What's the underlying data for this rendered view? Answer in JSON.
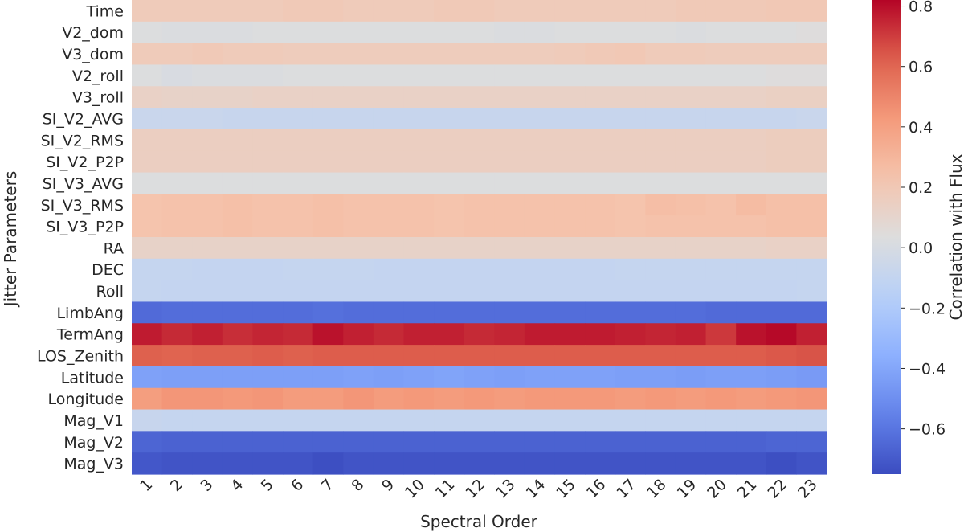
{
  "chart_data": {
    "type": "heatmap",
    "xlabel": "Spectral Order",
    "ylabel": "Jitter Parameters",
    "colorbar_label": "Correlation with Flux",
    "colormap": "coolwarm",
    "vmin": -0.75,
    "vmax": 0.82,
    "colorbar_ticks": [
      0.8,
      0.6,
      0.4,
      0.2,
      0.0,
      -0.2,
      -0.4,
      -0.6
    ],
    "colorbar_tick_labels": [
      "0.8",
      "0.6",
      "0.4",
      "0.2",
      "0.0",
      "−0.2",
      "−0.4",
      "−0.6"
    ],
    "x": [
      "1",
      "2",
      "3",
      "4",
      "5",
      "6",
      "7",
      "8",
      "9",
      "10",
      "11",
      "12",
      "13",
      "14",
      "15",
      "16",
      "17",
      "18",
      "19",
      "20",
      "21",
      "22",
      "23"
    ],
    "y": [
      "Time",
      "V2_dom",
      "V3_dom",
      "V2_roll",
      "V3_roll",
      "SI_V2_AVG",
      "SI_V2_RMS",
      "SI_V2_P2P",
      "SI_V3_AVG",
      "SI_V3_RMS",
      "SI_V3_P2P",
      "RA",
      "DEC",
      "Roll",
      "LimbAng",
      "TermAng",
      "LOS_Zenith",
      "Latitude",
      "Longitude",
      "Mag_V1",
      "Mag_V2",
      "Mag_V3"
    ],
    "values": [
      [
        0.18,
        0.18,
        0.18,
        0.18,
        0.18,
        0.19,
        0.19,
        0.18,
        0.18,
        0.18,
        0.19,
        0.19,
        0.18,
        0.18,
        0.18,
        0.18,
        0.18,
        0.18,
        0.19,
        0.19,
        0.19,
        0.2,
        0.2
      ],
      [
        0.03,
        0.02,
        0.02,
        0.02,
        0.03,
        0.03,
        0.03,
        0.03,
        0.03,
        0.03,
        0.03,
        0.03,
        0.02,
        0.02,
        0.03,
        0.03,
        0.03,
        0.03,
        0.02,
        0.03,
        0.03,
        0.03,
        0.04
      ],
      [
        0.18,
        0.18,
        0.19,
        0.18,
        0.18,
        0.17,
        0.17,
        0.17,
        0.17,
        0.17,
        0.17,
        0.17,
        0.17,
        0.17,
        0.18,
        0.19,
        0.2,
        0.18,
        0.18,
        0.17,
        0.17,
        0.17,
        0.17
      ],
      [
        0.03,
        0.01,
        0.02,
        0.02,
        0.02,
        0.03,
        0.03,
        0.03,
        0.03,
        0.03,
        0.03,
        0.03,
        0.03,
        0.03,
        0.03,
        0.03,
        0.03,
        0.03,
        0.03,
        0.03,
        0.03,
        0.04,
        0.04
      ],
      [
        0.13,
        0.12,
        0.12,
        0.12,
        0.13,
        0.13,
        0.13,
        0.13,
        0.13,
        0.13,
        0.13,
        0.13,
        0.13,
        0.13,
        0.13,
        0.13,
        0.13,
        0.13,
        0.13,
        0.13,
        0.13,
        0.14,
        0.14
      ],
      [
        -0.07,
        -0.07,
        -0.07,
        -0.08,
        -0.08,
        -0.08,
        -0.08,
        -0.08,
        -0.08,
        -0.08,
        -0.08,
        -0.08,
        -0.08,
        -0.08,
        -0.08,
        -0.08,
        -0.08,
        -0.08,
        -0.08,
        -0.08,
        -0.08,
        -0.08,
        -0.07
      ],
      [
        0.15,
        0.15,
        0.15,
        0.15,
        0.15,
        0.15,
        0.15,
        0.15,
        0.15,
        0.15,
        0.15,
        0.15,
        0.15,
        0.15,
        0.15,
        0.15,
        0.15,
        0.15,
        0.15,
        0.15,
        0.15,
        0.16,
        0.16
      ],
      [
        0.15,
        0.15,
        0.15,
        0.15,
        0.15,
        0.15,
        0.15,
        0.15,
        0.15,
        0.15,
        0.15,
        0.15,
        0.15,
        0.15,
        0.15,
        0.15,
        0.15,
        0.15,
        0.15,
        0.15,
        0.15,
        0.16,
        0.16
      ],
      [
        0.03,
        0.03,
        0.03,
        0.03,
        0.03,
        0.03,
        0.03,
        0.03,
        0.03,
        0.03,
        0.03,
        0.03,
        0.03,
        0.03,
        0.03,
        0.03,
        0.03,
        0.03,
        0.03,
        0.03,
        0.03,
        0.03,
        0.03
      ],
      [
        0.23,
        0.24,
        0.24,
        0.25,
        0.24,
        0.24,
        0.25,
        0.24,
        0.24,
        0.24,
        0.23,
        0.24,
        0.24,
        0.24,
        0.24,
        0.24,
        0.23,
        0.26,
        0.25,
        0.24,
        0.27,
        0.25,
        0.25
      ],
      [
        0.23,
        0.24,
        0.24,
        0.25,
        0.24,
        0.24,
        0.25,
        0.24,
        0.24,
        0.24,
        0.23,
        0.24,
        0.24,
        0.24,
        0.24,
        0.24,
        0.23,
        0.24,
        0.24,
        0.24,
        0.24,
        0.25,
        0.25
      ],
      [
        0.12,
        0.12,
        0.12,
        0.12,
        0.12,
        0.12,
        0.12,
        0.12,
        0.12,
        0.12,
        0.12,
        0.12,
        0.12,
        0.12,
        0.12,
        0.12,
        0.12,
        0.12,
        0.12,
        0.12,
        0.12,
        0.13,
        0.13
      ],
      [
        -0.09,
        -0.09,
        -0.1,
        -0.1,
        -0.1,
        -0.09,
        -0.09,
        -0.09,
        -0.1,
        -0.1,
        -0.1,
        -0.1,
        -0.1,
        -0.1,
        -0.1,
        -0.1,
        -0.09,
        -0.09,
        -0.09,
        -0.09,
        -0.09,
        -0.09,
        -0.09
      ],
      [
        -0.09,
        -0.1,
        -0.1,
        -0.1,
        -0.1,
        -0.1,
        -0.1,
        -0.1,
        -0.1,
        -0.1,
        -0.1,
        -0.1,
        -0.1,
        -0.1,
        -0.1,
        -0.1,
        -0.1,
        -0.1,
        -0.1,
        -0.1,
        -0.1,
        -0.1,
        -0.09
      ],
      [
        -0.64,
        -0.63,
        -0.63,
        -0.63,
        -0.63,
        -0.63,
        -0.62,
        -0.63,
        -0.63,
        -0.63,
        -0.63,
        -0.63,
        -0.63,
        -0.63,
        -0.63,
        -0.63,
        -0.63,
        -0.63,
        -0.63,
        -0.64,
        -0.64,
        -0.64,
        -0.64
      ],
      [
        0.77,
        0.74,
        0.76,
        0.73,
        0.75,
        0.74,
        0.79,
        0.76,
        0.74,
        0.76,
        0.76,
        0.74,
        0.75,
        0.77,
        0.77,
        0.77,
        0.76,
        0.75,
        0.76,
        0.71,
        0.79,
        0.81,
        0.76
      ],
      [
        0.62,
        0.61,
        0.62,
        0.62,
        0.63,
        0.62,
        0.63,
        0.63,
        0.63,
        0.63,
        0.63,
        0.63,
        0.63,
        0.63,
        0.63,
        0.63,
        0.63,
        0.63,
        0.63,
        0.63,
        0.63,
        0.64,
        0.65
      ],
      [
        -0.42,
        -0.43,
        -0.43,
        -0.43,
        -0.43,
        -0.43,
        -0.43,
        -0.42,
        -0.43,
        -0.42,
        -0.41,
        -0.42,
        -0.43,
        -0.42,
        -0.42,
        -0.42,
        -0.43,
        -0.43,
        -0.44,
        -0.43,
        -0.43,
        -0.44,
        -0.45
      ],
      [
        0.41,
        0.44,
        0.44,
        0.43,
        0.44,
        0.42,
        0.42,
        0.44,
        0.42,
        0.43,
        0.42,
        0.43,
        0.42,
        0.43,
        0.43,
        0.43,
        0.42,
        0.43,
        0.42,
        0.43,
        0.42,
        0.43,
        0.44
      ],
      [
        -0.08,
        -0.09,
        -0.09,
        -0.09,
        -0.09,
        -0.09,
        -0.09,
        -0.09,
        -0.09,
        -0.09,
        -0.09,
        -0.09,
        -0.09,
        -0.09,
        -0.09,
        -0.09,
        -0.09,
        -0.09,
        -0.09,
        -0.09,
        -0.09,
        -0.09,
        -0.09
      ],
      [
        -0.66,
        -0.67,
        -0.67,
        -0.67,
        -0.67,
        -0.67,
        -0.67,
        -0.67,
        -0.67,
        -0.67,
        -0.67,
        -0.67,
        -0.67,
        -0.67,
        -0.67,
        -0.67,
        -0.67,
        -0.67,
        -0.67,
        -0.67,
        -0.67,
        -0.66,
        -0.66
      ],
      [
        -0.71,
        -0.72,
        -0.72,
        -0.72,
        -0.72,
        -0.72,
        -0.74,
        -0.72,
        -0.72,
        -0.72,
        -0.72,
        -0.72,
        -0.72,
        -0.72,
        -0.72,
        -0.72,
        -0.72,
        -0.72,
        -0.72,
        -0.72,
        -0.72,
        -0.74,
        -0.72
      ]
    ]
  }
}
